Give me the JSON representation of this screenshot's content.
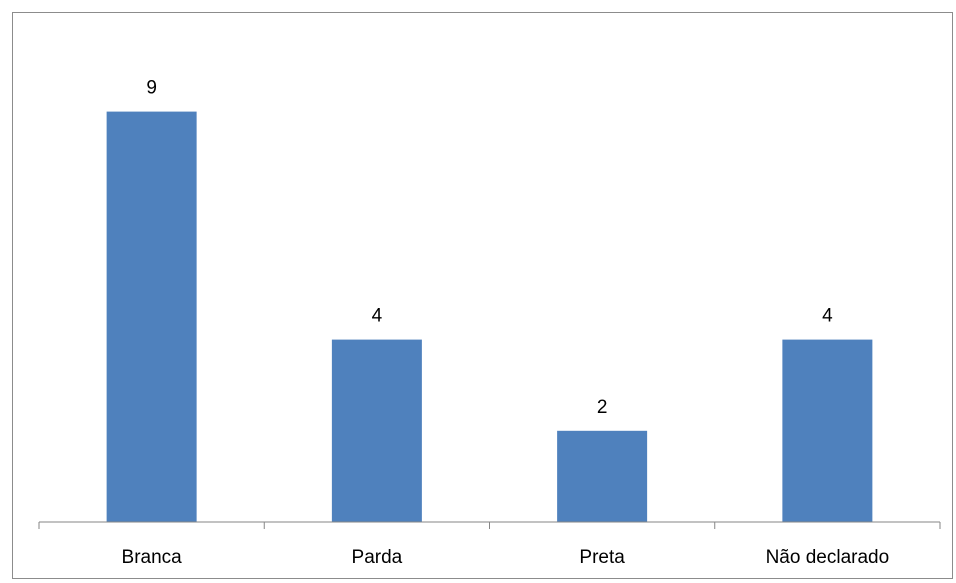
{
  "chart_data": {
    "type": "bar",
    "categories": [
      "Branca",
      "Parda",
      "Preta",
      "Não declarado"
    ],
    "values": [
      9,
      4,
      2,
      4
    ],
    "title": "",
    "xlabel": "",
    "ylabel": "",
    "ylim": [
      0,
      10
    ],
    "data_labels": true,
    "grid": false,
    "legend": "none",
    "bar_color": "#4F81BD",
    "axis_color": "#868686"
  }
}
